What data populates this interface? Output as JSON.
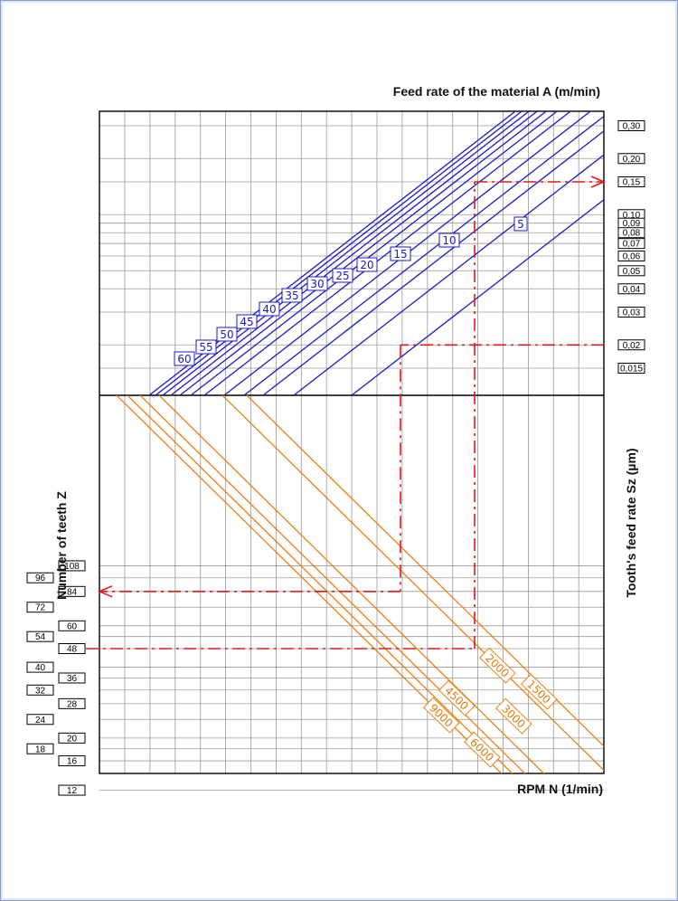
{
  "chart_data": {
    "type": "line",
    "title": "",
    "top_xlabel": "Feed rate of the material A (m/min)",
    "bottom_xlabel": "RPM N (1/min)",
    "left_ylabel": "Number of teeth Z",
    "right_ylabel": "Tooth's feed rate Sz (µm)",
    "upper_series_label": "Feed rate of the material A (m/min)",
    "feed_rate_series": [
      60,
      55,
      50,
      45,
      40,
      35,
      30,
      25,
      20,
      15,
      10,
      5
    ],
    "feed_rate_label_texts": [
      "60",
      "55",
      "50",
      "45",
      "40",
      "35",
      "30",
      "25",
      "20",
      "15",
      "10",
      "5"
    ],
    "rpm_series": [
      9000,
      6000,
      4500,
      3000,
      2000,
      1500
    ],
    "rpm_label_texts": [
      "9000",
      "6000",
      "4500",
      "3000",
      "2000",
      "1500"
    ],
    "sz_ticks": [
      {
        "value": 0.3,
        "label": "0,30"
      },
      {
        "value": 0.2,
        "label": "0,20"
      },
      {
        "value": 0.15,
        "label": "0,15"
      },
      {
        "value": 0.1,
        "label": "0,10"
      },
      {
        "value": 0.09,
        "label": "0,09"
      },
      {
        "value": 0.08,
        "label": "0,08"
      },
      {
        "value": 0.07,
        "label": "0,07"
      },
      {
        "value": 0.06,
        "label": "0,06"
      },
      {
        "value": 0.05,
        "label": "0,05"
      },
      {
        "value": 0.04,
        "label": "0,04"
      },
      {
        "value": 0.03,
        "label": "0,03"
      },
      {
        "value": 0.02,
        "label": "0,02"
      },
      {
        "value": 0.015,
        "label": "0,015"
      }
    ],
    "z_ticks_right_col": [
      "108",
      "84",
      "60",
      "48",
      "36",
      "28",
      "20",
      "16",
      "12"
    ],
    "z_ticks_left_col": [
      "96",
      "72",
      "54",
      "40",
      "32",
      "24",
      "18"
    ],
    "z_tick_values": [
      108,
      96,
      84,
      72,
      60,
      54,
      48,
      40,
      36,
      32,
      28,
      24,
      20,
      18,
      16,
      12
    ],
    "examples": [
      {
        "z": 48,
        "rpm": 2000,
        "feed_rate": 15,
        "sz": "0,15"
      },
      {
        "z": 84,
        "rpm": 4500,
        "feed_rate": 5,
        "sz": "0,02"
      }
    ],
    "colors": {
      "feed_lines": "#1a1ac8",
      "rpm_lines": "#ee7d10",
      "example": "#e01818",
      "grid": "#9a9a9a",
      "axis": "#000000"
    },
    "grid": true,
    "log_scale": true
  }
}
